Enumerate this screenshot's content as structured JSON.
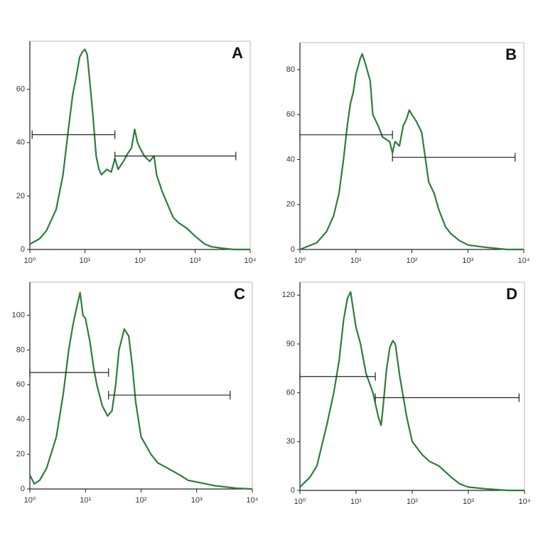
{
  "chart_data": [
    {
      "type": "line",
      "title": "A",
      "color": "#2e7d3a",
      "log_x": true,
      "x": [
        1,
        1.5,
        2,
        3,
        4,
        5,
        6,
        7,
        8,
        9,
        10,
        11,
        12,
        14,
        16,
        18,
        20,
        25,
        30,
        35,
        40,
        50,
        60,
        70,
        80,
        90,
        100,
        120,
        150,
        180,
        200,
        250,
        300,
        400,
        500,
        700,
        1000,
        1500,
        2000,
        3000,
        5000,
        10000
      ],
      "values": [
        2,
        4,
        7,
        15,
        28,
        45,
        58,
        65,
        72,
        74,
        75,
        73,
        65,
        50,
        35,
        30,
        28,
        30,
        29,
        34,
        30,
        33,
        36,
        38,
        45,
        40,
        38,
        35,
        33,
        35,
        28,
        22,
        18,
        12,
        10,
        8,
        5,
        2,
        1,
        0.5,
        0,
        0
      ],
      "xlim": [
        1,
        10000
      ],
      "ylim": [
        0,
        78
      ],
      "xticks": [
        {
          "value": 1,
          "label": "10⁰"
        },
        {
          "value": 10,
          "label": "10¹"
        },
        {
          "value": 100,
          "label": "10²"
        },
        {
          "value": 1000,
          "label": "10³"
        },
        {
          "value": 10000,
          "label": "10⁴"
        }
      ],
      "yticks": [
        0,
        20,
        40,
        60
      ],
      "gates": [
        {
          "x": [
            1.1,
            35
          ],
          "y": 43
        },
        {
          "x": [
            35,
            5500
          ],
          "y": 35
        }
      ]
    },
    {
      "type": "line",
      "title": "B",
      "color": "#2e7d3a",
      "log_x": true,
      "x": [
        1,
        2,
        3,
        4,
        5,
        6,
        7,
        8,
        9,
        10,
        12,
        13,
        15,
        18,
        20,
        25,
        30,
        40,
        45,
        50,
        60,
        70,
        80,
        90,
        100,
        120,
        150,
        180,
        200,
        250,
        300,
        400,
        500,
        700,
        1000,
        2000,
        5000,
        10000
      ],
      "values": [
        0,
        3,
        8,
        15,
        25,
        40,
        55,
        65,
        70,
        78,
        85,
        87,
        82,
        75,
        60,
        55,
        50,
        48,
        43,
        48,
        46,
        55,
        58,
        62,
        60,
        57,
        52,
        38,
        30,
        25,
        18,
        10,
        7,
        4,
        2,
        1,
        0,
        0
      ],
      "xlim": [
        1,
        10000
      ],
      "ylim": [
        0,
        92
      ],
      "xticks": [
        {
          "value": 1,
          "label": "10⁰"
        },
        {
          "value": 10,
          "label": "10¹"
        },
        {
          "value": 100,
          "label": "10²"
        },
        {
          "value": 1000,
          "label": "10³"
        },
        {
          "value": 10000,
          "label": "10⁴"
        }
      ],
      "yticks": [
        0,
        20,
        40,
        60,
        80
      ],
      "gates": [
        {
          "x": [
            1,
            45
          ],
          "y": 51
        },
        {
          "x": [
            45,
            7000
          ],
          "y": 41
        }
      ]
    },
    {
      "type": "line",
      "title": "C",
      "color": "#2e7d3a",
      "log_x": true,
      "x": [
        1,
        1.2,
        1.5,
        2,
        3,
        4,
        5,
        6,
        7,
        8,
        9,
        10,
        12,
        14,
        16,
        20,
        25,
        30,
        35,
        40,
        50,
        60,
        70,
        80,
        100,
        150,
        200,
        300,
        500,
        700,
        1000,
        2000,
        5000,
        10000
      ],
      "values": [
        8,
        3,
        5,
        12,
        30,
        55,
        80,
        95,
        105,
        113,
        100,
        98,
        85,
        70,
        60,
        48,
        42,
        45,
        60,
        80,
        92,
        88,
        70,
        50,
        30,
        20,
        15,
        12,
        8,
        5,
        4,
        2,
        0.5,
        0
      ],
      "xlim": [
        1,
        10000
      ],
      "ylim": [
        0,
        119
      ],
      "xticks": [
        {
          "value": 1,
          "label": "10⁰"
        },
        {
          "value": 10,
          "label": "10¹"
        },
        {
          "value": 100,
          "label": "10²"
        },
        {
          "value": 1000,
          "label": "10³"
        },
        {
          "value": 10000,
          "label": "10⁴"
        }
      ],
      "yticks": [
        0,
        20,
        40,
        60,
        80,
        100
      ],
      "gates": [
        {
          "x": [
            1,
            26
          ],
          "y": 67
        },
        {
          "x": [
            26,
            4000
          ],
          "y": 54
        }
      ]
    },
    {
      "type": "line",
      "title": "D",
      "color": "#2e7d3a",
      "log_x": true,
      "x": [
        1,
        1.5,
        2,
        3,
        4,
        5,
        6,
        7,
        8,
        9,
        10,
        12,
        15,
        20,
        25,
        28,
        30,
        35,
        40,
        45,
        50,
        60,
        80,
        100,
        150,
        200,
        300,
        500,
        700,
        1000,
        2000,
        5000,
        10000
      ],
      "values": [
        2,
        8,
        15,
        40,
        60,
        80,
        105,
        118,
        122,
        110,
        100,
        90,
        72,
        60,
        45,
        40,
        50,
        75,
        88,
        92,
        90,
        70,
        45,
        30,
        22,
        18,
        15,
        8,
        4,
        2,
        1,
        0,
        0
      ],
      "xlim": [
        1,
        10000
      ],
      "ylim": [
        0,
        128
      ],
      "xticks": [
        {
          "value": 1,
          "label": "10⁰"
        },
        {
          "value": 10,
          "label": "10¹"
        },
        {
          "value": 100,
          "label": "10²"
        },
        {
          "value": 1000,
          "label": "10³"
        },
        {
          "value": 10000,
          "label": "10⁴"
        }
      ],
      "yticks": [
        0,
        30,
        60,
        90,
        120
      ],
      "gates": [
        {
          "x": [
            1,
            22
          ],
          "y": 70
        },
        {
          "x": [
            22,
            8000
          ],
          "y": 57
        }
      ]
    }
  ]
}
